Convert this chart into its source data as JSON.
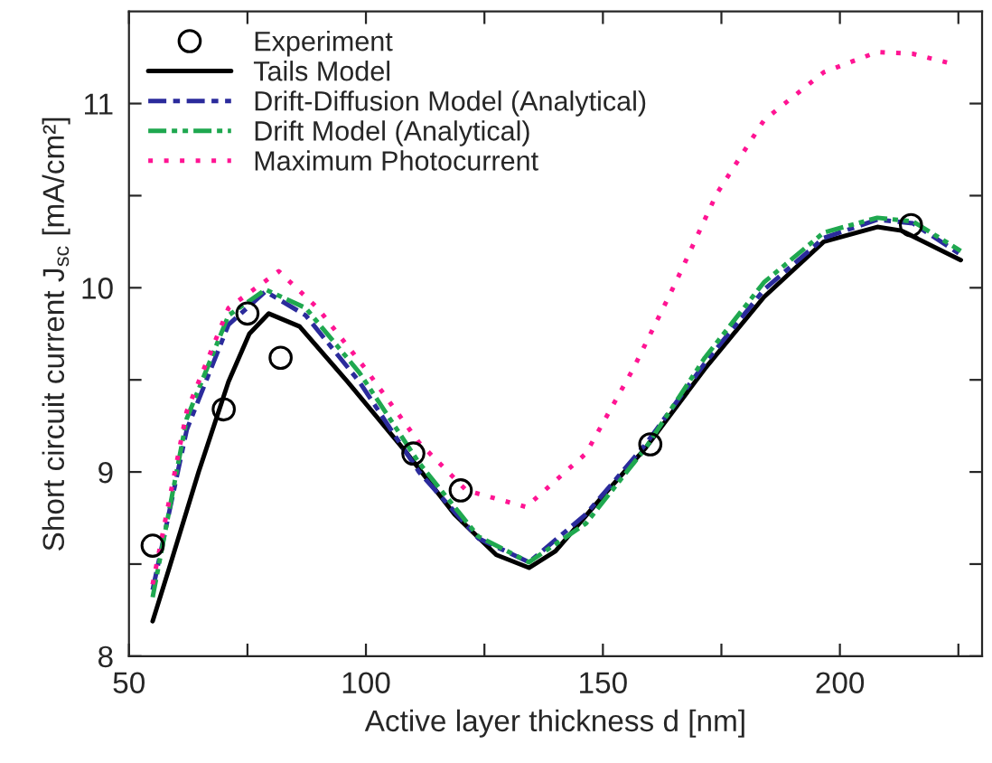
{
  "chart_data": {
    "type": "line",
    "xlabel": "Active layer thickness d [nm]",
    "ylabel": "Short circuit current J$_{sc}$ [mA/cm²]",
    "xlim": [
      50,
      230
    ],
    "ylim": [
      8,
      11.5
    ],
    "xticks": [
      50,
      {
        "value": 75,
        "label": null
      },
      100,
      {
        "value": 125,
        "label": null
      },
      150,
      {
        "value": 175,
        "label": null
      },
      200,
      {
        "value": 225,
        "label": null
      }
    ],
    "yticks": [
      8,
      {
        "value": 8.5,
        "label": null
      },
      9,
      {
        "value": 9.5,
        "label": null
      },
      10,
      {
        "value": 10.5,
        "label": null
      },
      11
    ],
    "grid": false,
    "legend": "top left",
    "series": [
      {
        "name": "Experiment",
        "type": "scatter",
        "marker": "circle",
        "color": "#000000",
        "x": [
          55,
          70,
          75,
          82,
          110,
          120,
          160,
          215
        ],
        "values": [
          8.6,
          9.34,
          9.86,
          9.62,
          9.1,
          8.9,
          9.15,
          10.34
        ]
      },
      {
        "name": "Tails Model",
        "line_style": "solid",
        "color": "#000000",
        "x": [
          55,
          58.4,
          64.7,
          71,
          75.4,
          79.5,
          86,
          96.1,
          108.7,
          118.7,
          127.5,
          134.4,
          140,
          150,
          159,
          171.5,
          184,
          196.6,
          207.9,
          213,
          225.5
        ],
        "values": [
          8.19,
          8.47,
          9.0,
          9.49,
          9.75,
          9.86,
          9.79,
          9.49,
          9.1,
          8.77,
          8.55,
          8.48,
          8.57,
          8.87,
          9.13,
          9.56,
          9.95,
          10.25,
          10.33,
          10.31,
          10.15
        ]
      },
      {
        "name": "Drift-Diffusion Model (Analytical)",
        "line_style": "dashdot",
        "color": "#2b2b9c",
        "x": [
          55,
          62.2,
          71,
          78.8,
          87.3,
          98.6,
          111.2,
          123.7,
          134.4,
          146.4,
          159,
          171.5,
          184,
          196.6,
          207.9,
          215.4,
          225.5
        ],
        "values": [
          8.36,
          9.23,
          9.8,
          9.98,
          9.85,
          9.49,
          9.0,
          8.64,
          8.51,
          8.77,
          9.15,
          9.59,
          9.99,
          10.27,
          10.37,
          10.35,
          10.18
        ]
      },
      {
        "name": "Drift Model (Analytical)",
        "line_style": "dashdotdot",
        "color": "#1fa84f",
        "x": [
          55,
          62.2,
          71,
          78.8,
          87.3,
          98.6,
          111.2,
          123.7,
          134.4,
          146.4,
          159,
          171.5,
          184,
          196.6,
          207.9,
          215.4,
          225.5
        ],
        "values": [
          8.32,
          9.29,
          9.85,
          9.99,
          9.89,
          9.54,
          9.05,
          8.65,
          8.51,
          8.72,
          9.13,
          9.62,
          10.03,
          10.3,
          10.38,
          10.36,
          10.2
        ]
      },
      {
        "name": "Maximum Photocurrent",
        "line_style": "dotted",
        "color": "#ff1493",
        "x": [
          55,
          62.2,
          71,
          81.6,
          89.8,
          99.9,
          111.2,
          121.2,
          133.8,
          146.4,
          156.4,
          165.2,
          174,
          184,
          196.6,
          207.9,
          215.4,
          223
        ],
        "values": [
          8.39,
          9.33,
          9.89,
          10.09,
          9.89,
          9.56,
          9.16,
          8.9,
          8.81,
          9.1,
          9.56,
          10.02,
          10.51,
          10.91,
          11.17,
          11.28,
          11.27,
          11.22
        ]
      }
    ]
  }
}
